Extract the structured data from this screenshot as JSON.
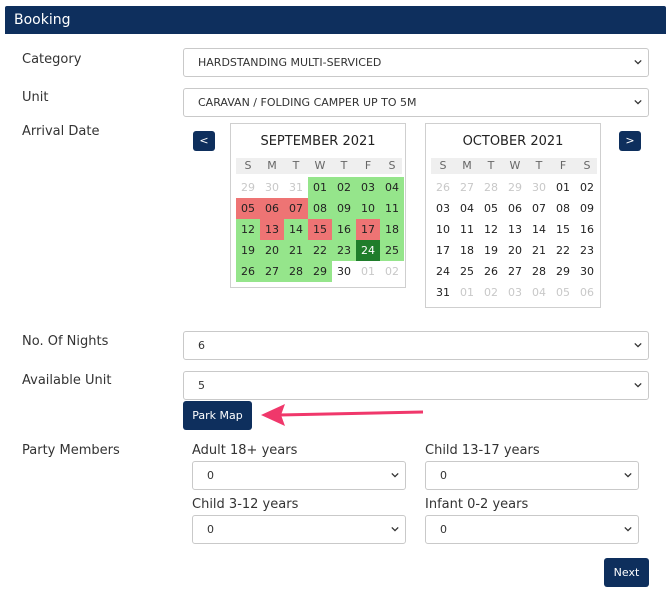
{
  "header": {
    "title": "Booking"
  },
  "fields": {
    "category": {
      "label": "Category",
      "value": "HARDSTANDING MULTI-SERVICED"
    },
    "unit": {
      "label": "Unit",
      "value": "CARAVAN / FOLDING CAMPER UP TO 5M"
    },
    "arrival": {
      "label": "Arrival Date"
    },
    "nights": {
      "label": "No. Of Nights",
      "value": "6"
    },
    "available_unit": {
      "label": "Available Unit",
      "value": "5"
    },
    "park_map": {
      "label": "Park Map"
    },
    "party": {
      "label": "Party Members",
      "adult": {
        "label": "Adult 18+ years",
        "value": "0"
      },
      "child13": {
        "label": "Child 13-17 years",
        "value": "0"
      },
      "child3": {
        "label": "Child 3-12 years",
        "value": "0"
      },
      "infant": {
        "label": "Infant 0-2 years",
        "value": "0"
      }
    }
  },
  "nav": {
    "prev": "<",
    "next": ">"
  },
  "calendars": [
    {
      "title": "SEPTEMBER 2021",
      "weekdays": [
        "S",
        "M",
        "T",
        "W",
        "T",
        "F",
        "S"
      ],
      "weeks": [
        [
          {
            "d": "29",
            "s": "muted"
          },
          {
            "d": "30",
            "s": "muted"
          },
          {
            "d": "31",
            "s": "muted"
          },
          {
            "d": "01",
            "s": "avail"
          },
          {
            "d": "02",
            "s": "avail"
          },
          {
            "d": "03",
            "s": "avail"
          },
          {
            "d": "04",
            "s": "avail"
          }
        ],
        [
          {
            "d": "05",
            "s": "booked"
          },
          {
            "d": "06",
            "s": "booked"
          },
          {
            "d": "07",
            "s": "booked"
          },
          {
            "d": "08",
            "s": "avail"
          },
          {
            "d": "09",
            "s": "avail"
          },
          {
            "d": "10",
            "s": "avail"
          },
          {
            "d": "11",
            "s": "avail"
          }
        ],
        [
          {
            "d": "12",
            "s": "avail"
          },
          {
            "d": "13",
            "s": "booked"
          },
          {
            "d": "14",
            "s": "avail"
          },
          {
            "d": "15",
            "s": "booked"
          },
          {
            "d": "16",
            "s": "avail"
          },
          {
            "d": "17",
            "s": "booked"
          },
          {
            "d": "18",
            "s": "avail"
          }
        ],
        [
          {
            "d": "19",
            "s": "avail"
          },
          {
            "d": "20",
            "s": "avail"
          },
          {
            "d": "21",
            "s": "avail"
          },
          {
            "d": "22",
            "s": "avail"
          },
          {
            "d": "23",
            "s": "avail"
          },
          {
            "d": "24",
            "s": "selected"
          },
          {
            "d": "25",
            "s": "avail"
          }
        ],
        [
          {
            "d": "26",
            "s": "avail"
          },
          {
            "d": "27",
            "s": "avail"
          },
          {
            "d": "28",
            "s": "avail"
          },
          {
            "d": "29",
            "s": "avail"
          },
          {
            "d": "30",
            "s": "plain"
          },
          {
            "d": "01",
            "s": "muted"
          },
          {
            "d": "02",
            "s": "muted"
          }
        ]
      ]
    },
    {
      "title": "OCTOBER 2021",
      "weekdays": [
        "S",
        "M",
        "T",
        "W",
        "T",
        "F",
        "S"
      ],
      "weeks": [
        [
          {
            "d": "26",
            "s": "muted"
          },
          {
            "d": "27",
            "s": "muted"
          },
          {
            "d": "28",
            "s": "muted"
          },
          {
            "d": "29",
            "s": "muted"
          },
          {
            "d": "30",
            "s": "muted"
          },
          {
            "d": "01",
            "s": "plain"
          },
          {
            "d": "02",
            "s": "plain"
          }
        ],
        [
          {
            "d": "03",
            "s": "plain"
          },
          {
            "d": "04",
            "s": "plain"
          },
          {
            "d": "05",
            "s": "plain"
          },
          {
            "d": "06",
            "s": "plain"
          },
          {
            "d": "07",
            "s": "plain"
          },
          {
            "d": "08",
            "s": "plain"
          },
          {
            "d": "09",
            "s": "plain"
          }
        ],
        [
          {
            "d": "10",
            "s": "plain"
          },
          {
            "d": "11",
            "s": "plain"
          },
          {
            "d": "12",
            "s": "plain"
          },
          {
            "d": "13",
            "s": "plain"
          },
          {
            "d": "14",
            "s": "plain"
          },
          {
            "d": "15",
            "s": "plain"
          },
          {
            "d": "16",
            "s": "plain"
          }
        ],
        [
          {
            "d": "17",
            "s": "plain"
          },
          {
            "d": "18",
            "s": "plain"
          },
          {
            "d": "19",
            "s": "plain"
          },
          {
            "d": "20",
            "s": "plain"
          },
          {
            "d": "21",
            "s": "plain"
          },
          {
            "d": "22",
            "s": "plain"
          },
          {
            "d": "23",
            "s": "plain"
          }
        ],
        [
          {
            "d": "24",
            "s": "plain"
          },
          {
            "d": "25",
            "s": "plain"
          },
          {
            "d": "26",
            "s": "plain"
          },
          {
            "d": "27",
            "s": "plain"
          },
          {
            "d": "28",
            "s": "plain"
          },
          {
            "d": "29",
            "s": "plain"
          },
          {
            "d": "30",
            "s": "plain"
          }
        ],
        [
          {
            "d": "31",
            "s": "plain"
          },
          {
            "d": "01",
            "s": "muted"
          },
          {
            "d": "02",
            "s": "muted"
          },
          {
            "d": "03",
            "s": "muted"
          },
          {
            "d": "04",
            "s": "muted"
          },
          {
            "d": "05",
            "s": "muted"
          },
          {
            "d": "06",
            "s": "muted"
          }
        ]
      ]
    }
  ],
  "footer": {
    "next_label": "Next"
  },
  "colors": {
    "primary": "#0e2f5d",
    "available": "#95e58b",
    "booked": "#ee7474",
    "selected": "#1f7d2b",
    "arrow": "#f0386b"
  },
  "icons": {
    "select": "chevron-down-icon",
    "annotation": "arrow-pointer-icon"
  }
}
